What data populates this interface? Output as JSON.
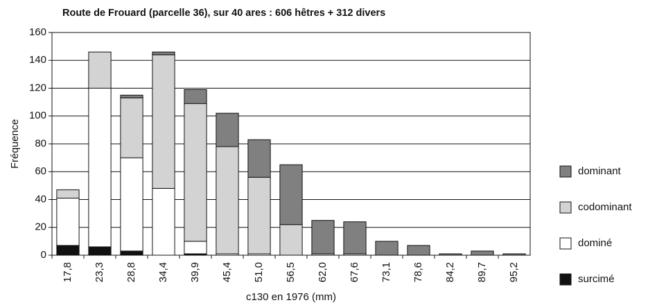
{
  "chart_data": {
    "type": "stacked_bar",
    "title": "Route de Frouard (parcelle 36), sur 40 ares : 606 hêtres + 312 divers",
    "x_label": "c130 en 1976 (mm)",
    "y_label": "Fréquence",
    "categories": [
      "17,8",
      "23,3",
      "28,8",
      "34,4",
      "39,9",
      "45,4",
      "51,0",
      "56,5",
      "62,0",
      "67,6",
      "73,1",
      "78,6",
      "84,2",
      "89,7",
      "95,2"
    ],
    "series": [
      {
        "name": "surcimé",
        "color": "#111111",
        "values": [
          7,
          6,
          3,
          0,
          1,
          0,
          0,
          0,
          0,
          0,
          0,
          0,
          0,
          0,
          0
        ]
      },
      {
        "name": "dominé",
        "color": "#ffffff",
        "values": [
          34,
          114,
          67,
          48,
          9,
          1,
          1,
          0,
          0,
          0,
          0,
          0,
          0,
          0,
          0
        ]
      },
      {
        "name": "codominant",
        "color": "#d3d3d3",
        "values": [
          6,
          26,
          43,
          96,
          99,
          77,
          55,
          22,
          1,
          1,
          0,
          0,
          0,
          0,
          0
        ]
      },
      {
        "name": "dominant",
        "color": "#808080",
        "values": [
          0,
          0,
          2,
          2,
          10,
          24,
          27,
          43,
          24,
          23,
          10,
          7,
          1,
          3,
          1
        ]
      }
    ],
    "ylim": [
      0,
      160
    ],
    "yticks": [
      0,
      20,
      40,
      60,
      80,
      100,
      120,
      140,
      160
    ],
    "grid": true,
    "legend": "right"
  }
}
